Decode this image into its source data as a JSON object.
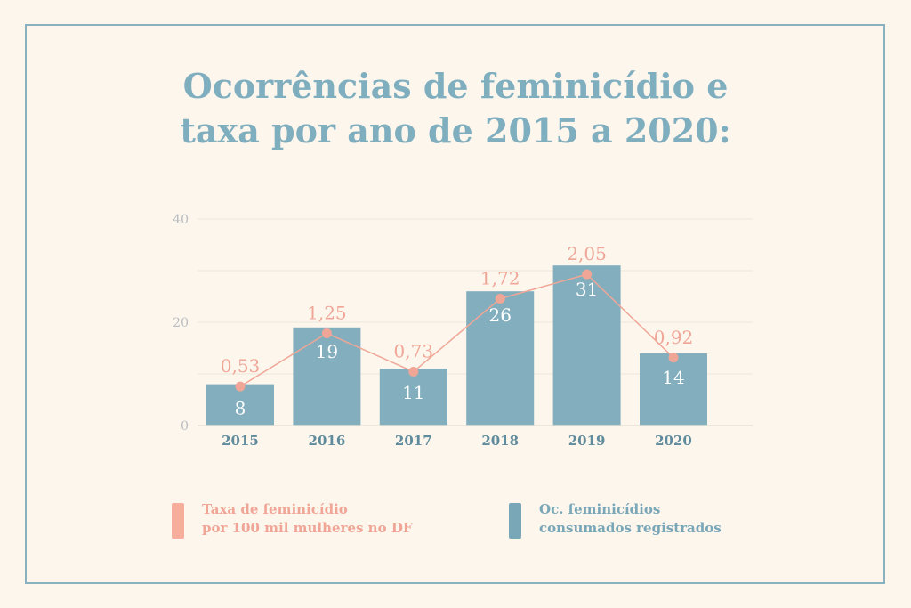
{
  "title": {
    "line1": "Ocorrências de feminicídio e",
    "line2": "taxa por ano de 2015 a 2020:"
  },
  "colors": {
    "background": "#fcf6ed",
    "frame": "#8ab1bf",
    "title": "#7faebf",
    "bar": "#82aebd",
    "line": "#f0a697",
    "axis_text": "#b9bcc0",
    "year_text": "#5f8b9c"
  },
  "chart_data": {
    "type": "bar+line",
    "categories": [
      "2015",
      "2016",
      "2017",
      "2018",
      "2019",
      "2020"
    ],
    "series": [
      {
        "name": "Oc. feminicídios consumados registrados",
        "type": "bar",
        "values": [
          8,
          19,
          11,
          26,
          31,
          14
        ],
        "labels": [
          "8",
          "19",
          "11",
          "26",
          "31",
          "14"
        ]
      },
      {
        "name": "Taxa de feminicídio por 100 mil mulheres no DF",
        "type": "line",
        "values": [
          0.53,
          1.25,
          0.73,
          1.72,
          2.05,
          0.92
        ],
        "labels": [
          "0,53",
          "1,25",
          "0,73",
          "1,72",
          "2,05",
          "0,92"
        ]
      }
    ],
    "yticks": [
      "0",
      "20",
      "40"
    ],
    "ylim": [
      0,
      40
    ],
    "line_ylim": [
      0,
      2.8
    ],
    "grid": true
  },
  "legend": {
    "rate_line1": "Taxa de feminicídio",
    "rate_line2": "por 100 mil mulheres no DF",
    "count_line1": "Oc. feminicídios",
    "count_line2": "consumados registrados"
  }
}
